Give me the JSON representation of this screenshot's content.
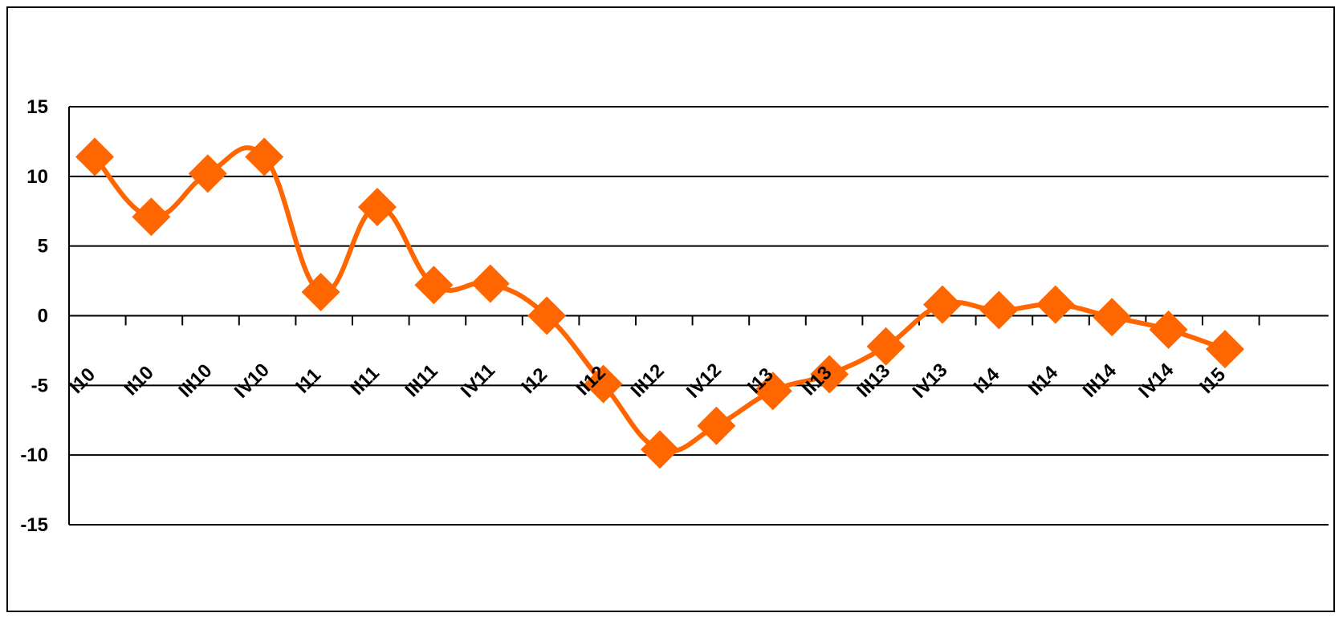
{
  "chart_data": {
    "type": "line",
    "title": "",
    "xlabel": "",
    "ylabel": "",
    "categories": [
      "I10",
      "II10",
      "III10",
      "IV10",
      "I11",
      "II11",
      "III11",
      "IV11",
      "I12",
      "II12",
      "III12",
      "IV12",
      "I13",
      "II13",
      "III13",
      "IV13",
      "I14",
      "II14",
      "III14",
      "IV14",
      "I15"
    ],
    "series": [
      {
        "values": [
          11.4,
          7.1,
          10.2,
          11.4,
          1.7,
          7.8,
          2.2,
          2.3,
          0.0,
          -4.9,
          -9.6,
          -7.9,
          -5.4,
          -4.2,
          -2.2,
          0.8,
          0.4,
          0.8,
          -0.1,
          -1.0,
          -2.4
        ],
        "color": "#FF6600",
        "marker": "diamond"
      }
    ],
    "ylim": [
      -15,
      15
    ],
    "yticks": [
      15,
      10,
      5,
      0,
      -5,
      -10,
      -15
    ],
    "grid": true,
    "legend": "none"
  }
}
